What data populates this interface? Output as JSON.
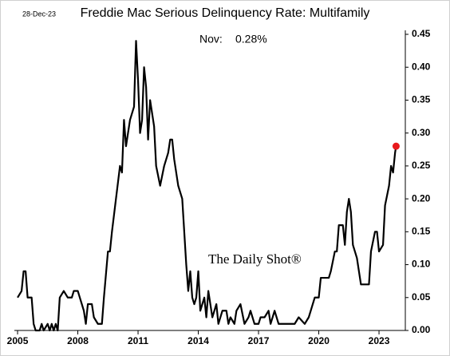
{
  "chart_data": {
    "type": "line",
    "title": "Freddie Mac Serious Delinquency Rate: Multifamily",
    "date_note": "28-Dec-23",
    "annotation_label": "Nov:",
    "annotation_value": "0.28%",
    "watermark": "The Daily Shot®",
    "xlim": [
      2004.84,
      2024.31
    ],
    "xticks": [
      2005,
      2008,
      2011,
      2014,
      2017,
      2020,
      2023
    ],
    "ylim": [
      0,
      0.45
    ],
    "yticks": [
      {
        "value": 0,
        "label": "0.00"
      },
      0.05,
      {
        "value": 0.1,
        "label": "0.10"
      },
      0.15,
      {
        "value": 0.2,
        "label": "0.20"
      },
      0.25,
      {
        "value": 0.3,
        "label": "0.30"
      },
      0.35,
      {
        "value": 0.4,
        "label": "0.40"
      },
      0.45
    ],
    "series": [
      {
        "color": "#000000",
        "marker_color": "#e8191c",
        "x": [
          2005.0,
          2005.2,
          2005.3,
          2005.4,
          2005.5,
          2005.7,
          2005.8,
          2005.9,
          2006.1,
          2006.2,
          2006.3,
          2006.5,
          2006.6,
          2006.7,
          2006.8,
          2006.9,
          2007.0,
          2007.1,
          2007.3,
          2007.5,
          2007.7,
          2007.8,
          2008.0,
          2008.1,
          2008.3,
          2008.4,
          2008.5,
          2008.7,
          2008.8,
          2009.0,
          2009.2,
          2009.3,
          2009.5,
          2009.6,
          2009.7,
          2009.9,
          2010.1,
          2010.2,
          2010.3,
          2010.4,
          2010.6,
          2010.8,
          2010.9,
          2011.0,
          2011.1,
          2011.2,
          2011.3,
          2011.4,
          2011.5,
          2011.6,
          2011.8,
          2011.9,
          2012.1,
          2012.3,
          2012.5,
          2012.6,
          2012.7,
          2012.8,
          2013.0,
          2013.2,
          2013.4,
          2013.5,
          2013.6,
          2013.7,
          2013.8,
          2013.9,
          2014.0,
          2014.1,
          2014.3,
          2014.4,
          2014.5,
          2014.6,
          2014.7,
          2014.9,
          2015.0,
          2015.2,
          2015.4,
          2015.5,
          2015.6,
          2015.8,
          2015.9,
          2016.1,
          2016.3,
          2016.5,
          2016.6,
          2016.8,
          2017.0,
          2017.1,
          2017.3,
          2017.5,
          2017.6,
          2017.8,
          2018.0,
          2018.5,
          2018.8,
          2019.0,
          2019.3,
          2019.5,
          2019.6,
          2019.8,
          2020.0,
          2020.1,
          2020.5,
          2020.6,
          2020.8,
          2020.9,
          2021.0,
          2021.2,
          2021.3,
          2021.4,
          2021.5,
          2021.6,
          2021.7,
          2021.9,
          2022.0,
          2022.1,
          2022.3,
          2022.5,
          2022.6,
          2022.8,
          2022.9,
          2023.0,
          2023.2,
          2023.3,
          2023.5,
          2023.6,
          2023.7,
          2023.8,
          2023.85
        ],
        "values": [
          0.05,
          0.06,
          0.09,
          0.09,
          0.05,
          0.05,
          0.01,
          0.0,
          0.0,
          0.01,
          0.0,
          0.01,
          0.0,
          0.01,
          0.0,
          0.01,
          0.0,
          0.05,
          0.06,
          0.05,
          0.05,
          0.06,
          0.06,
          0.05,
          0.03,
          0.01,
          0.04,
          0.04,
          0.02,
          0.01,
          0.01,
          0.05,
          0.12,
          0.12,
          0.15,
          0.2,
          0.25,
          0.24,
          0.32,
          0.28,
          0.32,
          0.34,
          0.44,
          0.38,
          0.3,
          0.32,
          0.4,
          0.37,
          0.29,
          0.35,
          0.31,
          0.25,
          0.22,
          0.25,
          0.27,
          0.29,
          0.29,
          0.26,
          0.22,
          0.2,
          0.1,
          0.06,
          0.09,
          0.05,
          0.04,
          0.05,
          0.09,
          0.03,
          0.05,
          0.02,
          0.06,
          0.04,
          0.02,
          0.04,
          0.01,
          0.03,
          0.03,
          0.01,
          0.02,
          0.01,
          0.03,
          0.04,
          0.01,
          0.02,
          0.03,
          0.01,
          0.01,
          0.02,
          0.02,
          0.03,
          0.01,
          0.03,
          0.01,
          0.01,
          0.01,
          0.02,
          0.01,
          0.02,
          0.03,
          0.05,
          0.05,
          0.08,
          0.08,
          0.09,
          0.12,
          0.12,
          0.16,
          0.16,
          0.13,
          0.18,
          0.2,
          0.18,
          0.13,
          0.11,
          0.09,
          0.07,
          0.07,
          0.07,
          0.12,
          0.15,
          0.15,
          0.12,
          0.13,
          0.19,
          0.22,
          0.25,
          0.24,
          0.27,
          0.28
        ]
      }
    ]
  }
}
